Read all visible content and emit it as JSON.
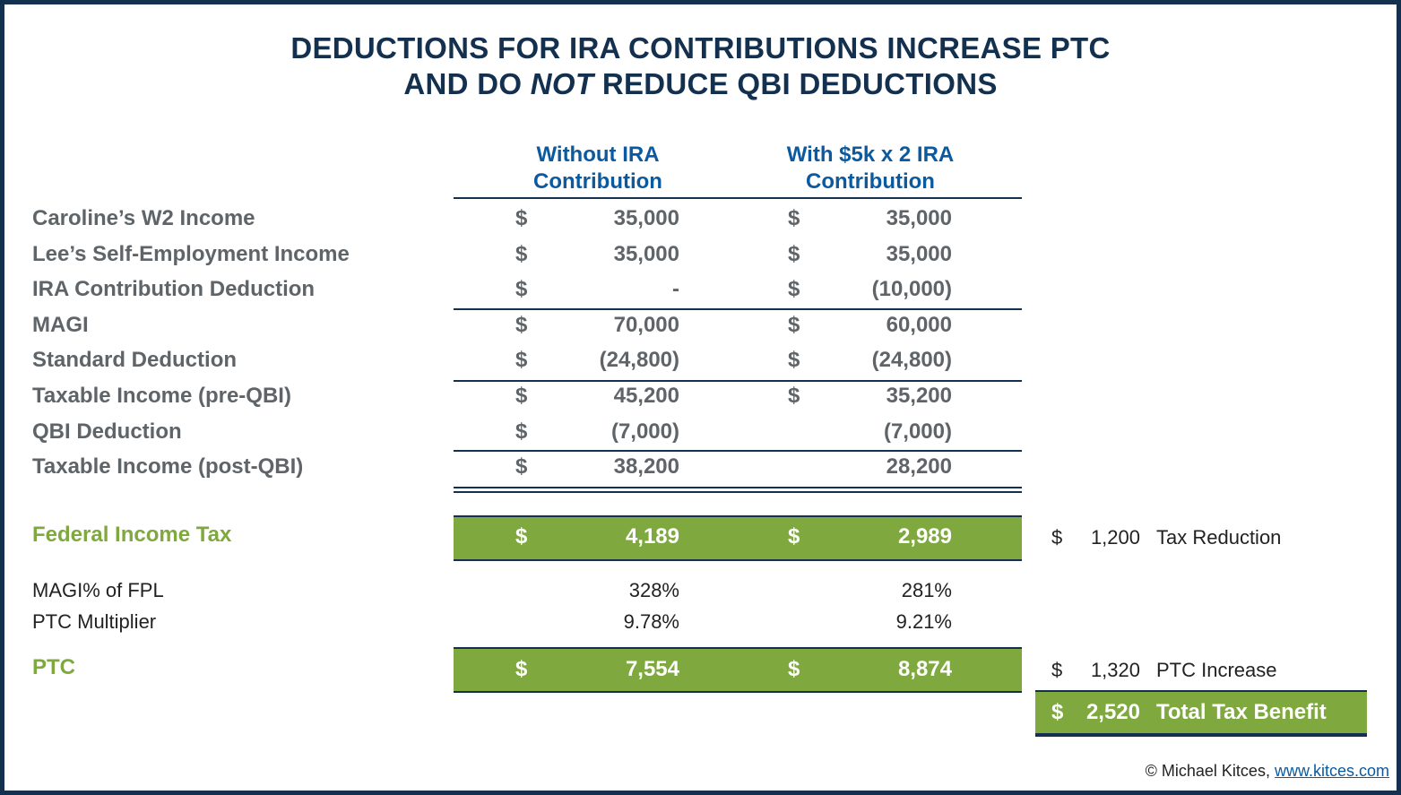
{
  "title": {
    "line1": "DEDUCTIONS FOR IRA CONTRIBUTIONS INCREASE PTC",
    "line2_before": "AND DO",
    "line2_em": "NOT",
    "line2_after": "REDUCE QBI DEDUCTIONS"
  },
  "columns": {
    "without": [
      "Without  IRA",
      "Contribution"
    ],
    "with": [
      "With $5k x 2 IRA",
      "Contribution"
    ]
  },
  "rows": [
    {
      "label": "Caroline’s W2 Income",
      "d1": "$",
      "v1": "35,000",
      "d2": "$",
      "v2": "35,000"
    },
    {
      "label": "Lee’s Self-Employment Income",
      "d1": "$",
      "v1": "35,000",
      "d2": "$",
      "v2": "35,000"
    },
    {
      "label": "IRA Contribution Deduction",
      "d1": "$",
      "v1": "-",
      "d2": "$",
      "v2": "(10,000)"
    },
    {
      "label": "MAGI",
      "d1": "$",
      "v1": "70,000",
      "d2": "$",
      "v2": "60,000"
    },
    {
      "label": "Standard Deduction",
      "d1": "$",
      "v1": "(24,800)",
      "d2": "$",
      "v2": "(24,800)"
    },
    {
      "label": "Taxable Income (pre-QBI)",
      "d1": "$",
      "v1": "45,200",
      "d2": "$",
      "v2": "35,200"
    },
    {
      "label": "QBI Deduction",
      "d1": "$",
      "v1": "(7,000)",
      "d2": "",
      "v2": "(7,000)"
    },
    {
      "label": "Taxable Income (post-QBI)",
      "d1": "$",
      "v1": "38,200",
      "d2": "",
      "v2": "28,200"
    }
  ],
  "federal_tax": {
    "label": "Federal Income Tax",
    "d1": "$",
    "v1": "4,189",
    "d2": "$",
    "v2": "2,989",
    "side_dollar": "$",
    "side_value": "1,200",
    "side_label": "Tax Reduction"
  },
  "magi_fpl": {
    "label": "MAGI% of FPL",
    "v1": "328%",
    "v2": "281%"
  },
  "ptc_multiplier": {
    "label": "PTC Multiplier",
    "v1": "9.78%",
    "v2": "9.21%"
  },
  "ptc": {
    "label": "PTC",
    "d1": "$",
    "v1": "7,554",
    "d2": "$",
    "v2": "8,874",
    "side_dollar": "$",
    "side_value": "1,320",
    "side_label": "PTC Increase"
  },
  "total": {
    "dollar": "$",
    "value": "2,520",
    "label": "Total Tax Benefit"
  },
  "credit": {
    "text": "© Michael Kitces,",
    "link": "www.kitces.com"
  },
  "colors": {
    "navy": "#14304f",
    "blue": "#0b5aa0",
    "green": "#7fa83f",
    "gray": "#5e6468"
  }
}
